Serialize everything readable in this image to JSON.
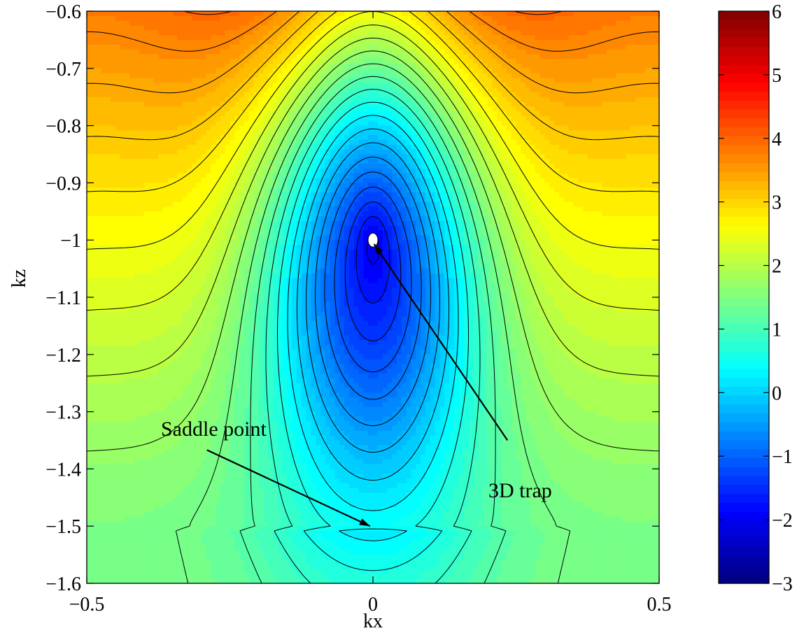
{
  "chart_data": {
    "type": "contour",
    "title": "",
    "xlabel": "kx",
    "ylabel": "kz",
    "xlim": [
      -0.5,
      0.5
    ],
    "ylim": [
      -1.6,
      -0.6
    ],
    "x_ticks": [
      {
        "value": -0.5,
        "label": "−0.5"
      },
      {
        "value": 0,
        "label": "0"
      },
      {
        "value": 0.5,
        "label": "0.5"
      }
    ],
    "y_ticks": [
      {
        "value": -0.6,
        "label": "−0.6"
      },
      {
        "value": -0.7,
        "label": "−0.7"
      },
      {
        "value": -0.8,
        "label": "−0.8"
      },
      {
        "value": -0.9,
        "label": "−0.9"
      },
      {
        "value": -1.0,
        "label": "−1"
      },
      {
        "value": -1.1,
        "label": "−1.1"
      },
      {
        "value": -1.2,
        "label": "−1.2"
      },
      {
        "value": -1.3,
        "label": "−1.3"
      },
      {
        "value": -1.4,
        "label": "−1.4"
      },
      {
        "value": -1.5,
        "label": "−1.5"
      },
      {
        "value": -1.6,
        "label": "−1.6"
      }
    ],
    "colorbar": {
      "colormap": "jet",
      "range": [
        -3,
        6
      ],
      "ticks": [
        {
          "value": 6,
          "label": "6"
        },
        {
          "value": 5,
          "label": "5"
        },
        {
          "value": 4,
          "label": "4"
        },
        {
          "value": 3,
          "label": "3"
        },
        {
          "value": 2,
          "label": "2"
        },
        {
          "value": 1,
          "label": "1"
        },
        {
          "value": 0,
          "label": "0"
        },
        {
          "value": -1,
          "label": "−1"
        },
        {
          "value": -2,
          "label": "−2"
        },
        {
          "value": -3,
          "label": "−3"
        }
      ]
    },
    "features": {
      "trap_center": {
        "kx": 0,
        "kz": -1.0
      },
      "saddle": {
        "kx": 0,
        "kz": -1.5,
        "value": 1.5
      }
    },
    "annotations": [
      {
        "name": "saddle-point",
        "text": "Saddle point",
        "arrow_from": {
          "kx": -0.29,
          "kz": -1.367
        },
        "arrow_to": {
          "kx": -0.005,
          "kz": -1.5
        }
      },
      {
        "name": "3d-trap",
        "text": "3D trap",
        "arrow_from": {
          "kx": 0.235,
          "kz": -1.35
        },
        "arrow_to": {
          "kx": 0.002,
          "kz": -1.007
        }
      }
    ]
  }
}
